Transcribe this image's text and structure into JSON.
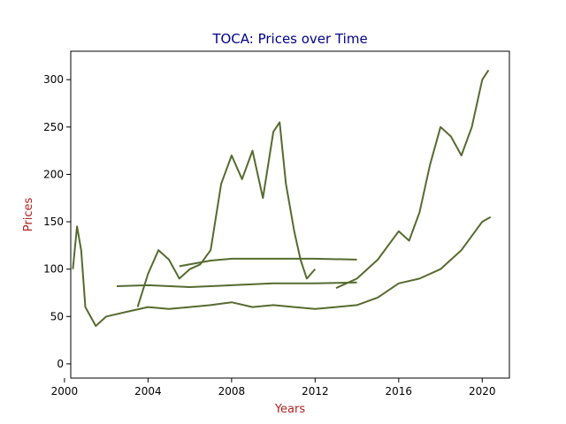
{
  "chart_data": {
    "type": "line",
    "title": "TOCA: Prices over Time",
    "xlabel": "Years",
    "ylabel": "Prices",
    "x_ticks": [
      "2000",
      "2004",
      "2008",
      "2012",
      "2016",
      "2020"
    ],
    "y_ticks": [
      "0",
      "50",
      "100",
      "150",
      "200",
      "250",
      "300"
    ],
    "xlim": [
      2000.3,
      2021.3
    ],
    "ylim": [
      -15,
      330
    ],
    "grid": false,
    "legend": "none",
    "series_color": "#556b2f",
    "title_color": "#00008b",
    "label_color": "#b22222",
    "series": [
      {
        "x": [
          2000.4,
          2000.6,
          2000.8,
          2001.0,
          2001.5,
          2002.0,
          2003.0,
          2004.0,
          2005.0,
          2006.0,
          2007.0,
          2008.0,
          2009.0,
          2010.0,
          2011.0,
          2012.0,
          2013.0,
          2014.0,
          2015.0,
          2016.0,
          2017.0,
          2018.0,
          2019.0,
          2020.0,
          2020.4
        ],
        "values": [
          100,
          145,
          120,
          60,
          40,
          50,
          55,
          60,
          58,
          60,
          62,
          65,
          60,
          62,
          60,
          58,
          60,
          62,
          70,
          85,
          90,
          100,
          120,
          150,
          155
        ]
      },
      {
        "x": [
          2003.5,
          2004.0,
          2004.5,
          2005.0,
          2005.5,
          2006.0,
          2006.5,
          2007.0,
          2007.5,
          2008.0,
          2008.5,
          2009.0,
          2009.5,
          2010.0,
          2010.3,
          2010.6,
          2011.0,
          2011.3,
          2011.6,
          2012.0
        ],
        "values": [
          60,
          95,
          120,
          110,
          90,
          100,
          105,
          120,
          190,
          220,
          195,
          225,
          175,
          245,
          255,
          190,
          140,
          110,
          90,
          100
        ]
      },
      {
        "x": [
          2002.5,
          2004.0,
          2006.0,
          2008.0,
          2010.0,
          2012.0,
          2014.0
        ],
        "values": [
          82,
          83,
          81,
          83,
          85,
          85,
          86
        ]
      },
      {
        "x": [
          2005.5,
          2007.0,
          2008.0,
          2010.0,
          2012.0,
          2014.0
        ],
        "values": [
          103,
          109,
          111,
          111,
          111,
          110
        ]
      },
      {
        "x": [
          2013.0,
          2014.0,
          2015.0,
          2016.0,
          2016.5,
          2017.0,
          2017.5,
          2018.0,
          2018.5,
          2019.0,
          2019.5,
          2020.0,
          2020.3
        ],
        "values": [
          80,
          90,
          110,
          140,
          130,
          160,
          210,
          250,
          240,
          220,
          250,
          300,
          310
        ]
      }
    ]
  }
}
